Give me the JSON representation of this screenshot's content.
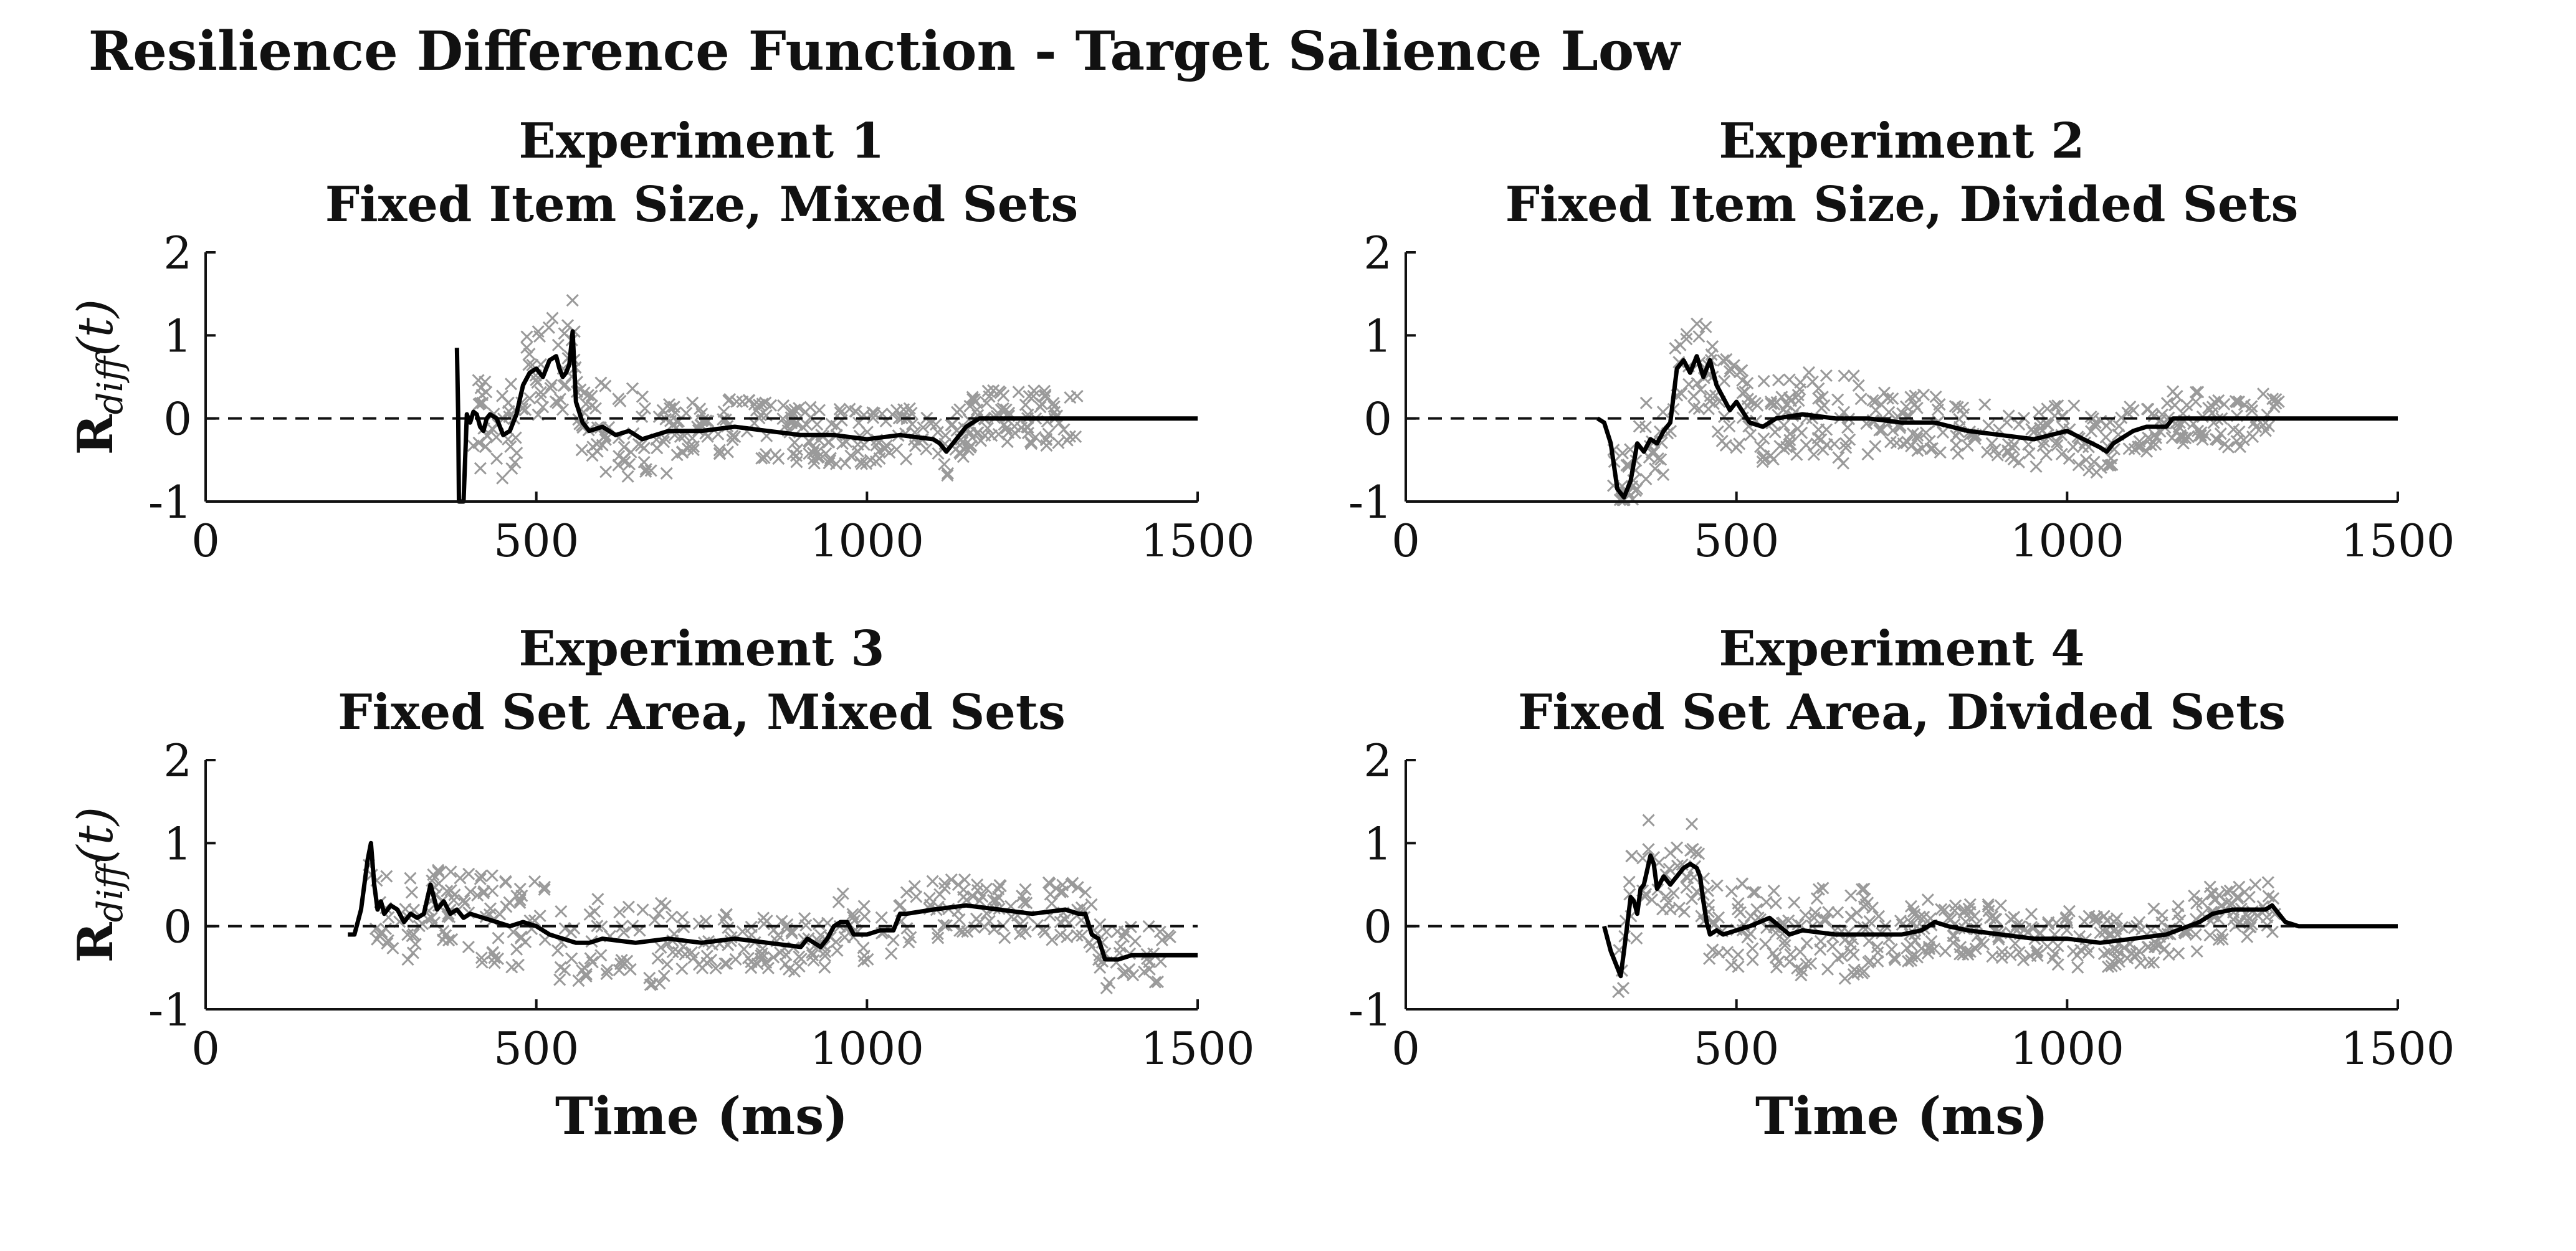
{
  "chart_data": {
    "title": "Resilience Difference Function - Target Salience Low",
    "type": "line",
    "panels": [
      {
        "title_line1": "Experiment 1",
        "title_line2": "Fixed Item Size, Mixed Sets",
        "xlabel": "",
        "ylabel_main": "R",
        "ylabel_sub": "diff",
        "ylabel_arg": "(t)",
        "xlim": [
          0,
          1500
        ],
        "ylim": [
          -1,
          2
        ],
        "xticks": [
          0,
          500,
          1000,
          1500
        ],
        "yticks": [
          -1,
          0,
          1,
          2
        ],
        "ytick_labels": [
          "-1",
          "0",
          "1",
          "2"
        ],
        "reference_line": 0,
        "series": [
          {
            "type": "line",
            "x": [
              380,
              382,
              383,
              386,
              390,
              395,
              400,
              405,
              410,
              415,
              420,
              425,
              430,
              440,
              445,
              450,
              460,
              470,
              480,
              490,
              500,
              510,
              520,
              530,
              535,
              540,
              545,
              550,
              555,
              560,
              570,
              580,
              600,
              620,
              640,
              660,
              680,
              700,
              750,
              800,
              850,
              900,
              950,
              1000,
              1050,
              1100,
              1110,
              1120,
              1130,
              1140,
              1150,
              1160,
              1170,
              1180,
              1200,
              1250,
              1300,
              1350,
              1400,
              1500
            ],
            "y": [
              0.85,
              0.0,
              -1.0,
              -1.0,
              -1.0,
              0.05,
              -0.05,
              0.08,
              0.05,
              -0.1,
              -0.15,
              0.0,
              0.05,
              0.0,
              -0.1,
              -0.2,
              -0.15,
              0.05,
              0.4,
              0.55,
              0.6,
              0.5,
              0.7,
              0.75,
              0.6,
              0.5,
              0.55,
              0.65,
              1.05,
              0.2,
              -0.05,
              -0.15,
              -0.1,
              -0.2,
              -0.15,
              -0.25,
              -0.2,
              -0.15,
              -0.15,
              -0.1,
              -0.15,
              -0.2,
              -0.2,
              -0.25,
              -0.2,
              -0.25,
              -0.3,
              -0.4,
              -0.3,
              -0.2,
              -0.1,
              -0.05,
              0.0,
              0.0,
              0.0,
              0.0,
              0.0,
              0.0,
              0.0,
              0.0
            ]
          }
        ]
      },
      {
        "title_line1": "Experiment 2",
        "title_line2": "Fixed Item Size, Divided Sets",
        "xlabel": "",
        "ylabel_main": "",
        "ylabel_sub": "",
        "ylabel_arg": "",
        "xlim": [
          0,
          1500
        ],
        "ylim": [
          -1,
          2
        ],
        "xticks": [
          0,
          500,
          1000,
          1500
        ],
        "yticks": [
          -1,
          0,
          1,
          2
        ],
        "ytick_labels": [
          "-1",
          "0",
          "1",
          "2"
        ],
        "reference_line": 0,
        "series": [
          {
            "type": "line",
            "x": [
              290,
              300,
              310,
              320,
              330,
              340,
              350,
              360,
              370,
              380,
              390,
              400,
              410,
              420,
              430,
              440,
              450,
              460,
              470,
              480,
              490,
              500,
              520,
              540,
              560,
              600,
              650,
              700,
              750,
              800,
              850,
              900,
              950,
              1000,
              1050,
              1060,
              1070,
              1080,
              1100,
              1120,
              1150,
              1160,
              1200,
              1300,
              1500
            ],
            "y": [
              0.0,
              -0.05,
              -0.3,
              -0.85,
              -0.95,
              -0.75,
              -0.3,
              -0.4,
              -0.25,
              -0.3,
              -0.15,
              -0.05,
              0.6,
              0.7,
              0.55,
              0.75,
              0.5,
              0.7,
              0.4,
              0.25,
              0.1,
              0.2,
              -0.05,
              -0.1,
              0.0,
              0.05,
              0.0,
              0.0,
              -0.05,
              -0.05,
              -0.15,
              -0.2,
              -0.25,
              -0.15,
              -0.35,
              -0.4,
              -0.3,
              -0.25,
              -0.15,
              -0.1,
              -0.1,
              0.0,
              0.0,
              0.0,
              0.0
            ]
          }
        ]
      },
      {
        "title_line1": "Experiment 3",
        "title_line2": "Fixed Set Area, Mixed Sets",
        "xlabel": "Time (ms)",
        "ylabel_main": "R",
        "ylabel_sub": "diff",
        "ylabel_arg": "(t)",
        "xlim": [
          0,
          1500
        ],
        "ylim": [
          -1,
          2
        ],
        "xticks": [
          0,
          500,
          1000,
          1500
        ],
        "yticks": [
          -1,
          0,
          1,
          2
        ],
        "ytick_labels": [
          "-1",
          "0",
          "1",
          "2"
        ],
        "reference_line": 0,
        "series": [
          {
            "type": "line",
            "x": [
              215,
              225,
              235,
              245,
              250,
              255,
              260,
              265,
              270,
              280,
              290,
              300,
              310,
              320,
              330,
              340,
              350,
              360,
              370,
              380,
              390,
              400,
              420,
              440,
              460,
              480,
              500,
              520,
              540,
              560,
              580,
              600,
              650,
              700,
              750,
              800,
              850,
              900,
              910,
              920,
              930,
              940,
              950,
              960,
              970,
              980,
              1000,
              1020,
              1040,
              1050,
              1060,
              1100,
              1150,
              1200,
              1250,
              1300,
              1320,
              1330,
              1340,
              1350,
              1360,
              1380,
              1400,
              1500
            ],
            "y": [
              -0.1,
              -0.1,
              0.2,
              0.8,
              1.0,
              0.5,
              0.2,
              0.3,
              0.15,
              0.25,
              0.2,
              0.05,
              0.15,
              0.1,
              0.15,
              0.5,
              0.2,
              0.3,
              0.15,
              0.2,
              0.1,
              0.15,
              0.1,
              0.05,
              0.0,
              0.05,
              0.0,
              -0.1,
              -0.15,
              -0.2,
              -0.2,
              -0.15,
              -0.2,
              -0.15,
              -0.2,
              -0.15,
              -0.2,
              -0.25,
              -0.15,
              -0.2,
              -0.25,
              -0.15,
              0.0,
              0.05,
              0.05,
              -0.1,
              -0.1,
              -0.05,
              -0.05,
              0.15,
              0.15,
              0.2,
              0.25,
              0.2,
              0.15,
              0.2,
              0.15,
              0.15,
              -0.1,
              -0.15,
              -0.4,
              -0.4,
              -0.35,
              -0.35
            ]
          }
        ]
      },
      {
        "title_line1": "Experiment 4",
        "title_line2": "Fixed Set Area, Divided Sets",
        "xlabel": "Time (ms)",
        "ylabel_main": "",
        "ylabel_sub": "",
        "ylabel_arg": "",
        "xlim": [
          0,
          1500
        ],
        "ylim": [
          -1,
          2
        ],
        "xticks": [
          0,
          500,
          1000,
          1500
        ],
        "yticks": [
          -1,
          0,
          1,
          2
        ],
        "ytick_labels": [
          "-1",
          "0",
          "1",
          "2"
        ],
        "reference_line": 0,
        "series": [
          {
            "type": "line",
            "x": [
              300,
              310,
              320,
              325,
              330,
              340,
              345,
              350,
              355,
              360,
              370,
              375,
              380,
              390,
              400,
              410,
              420,
              430,
              440,
              445,
              450,
              455,
              460,
              470,
              480,
              500,
              520,
              550,
              580,
              600,
              650,
              700,
              750,
              780,
              800,
              820,
              850,
              900,
              950,
              1000,
              1050,
              1100,
              1150,
              1200,
              1220,
              1250,
              1300,
              1310,
              1320,
              1330,
              1350,
              1500
            ],
            "y": [
              0.0,
              -0.3,
              -0.5,
              -0.6,
              -0.3,
              0.35,
              0.3,
              0.15,
              0.45,
              0.5,
              0.85,
              0.75,
              0.45,
              0.6,
              0.5,
              0.6,
              0.7,
              0.75,
              0.7,
              0.6,
              0.3,
              0.05,
              -0.1,
              -0.05,
              -0.1,
              -0.05,
              0.0,
              0.1,
              -0.1,
              -0.05,
              -0.1,
              -0.1,
              -0.1,
              -0.05,
              0.05,
              0.0,
              -0.05,
              -0.1,
              -0.15,
              -0.15,
              -0.2,
              -0.15,
              -0.1,
              0.05,
              0.15,
              0.2,
              0.2,
              0.25,
              0.15,
              0.05,
              0.0,
              0.0
            ]
          }
        ]
      }
    ]
  }
}
